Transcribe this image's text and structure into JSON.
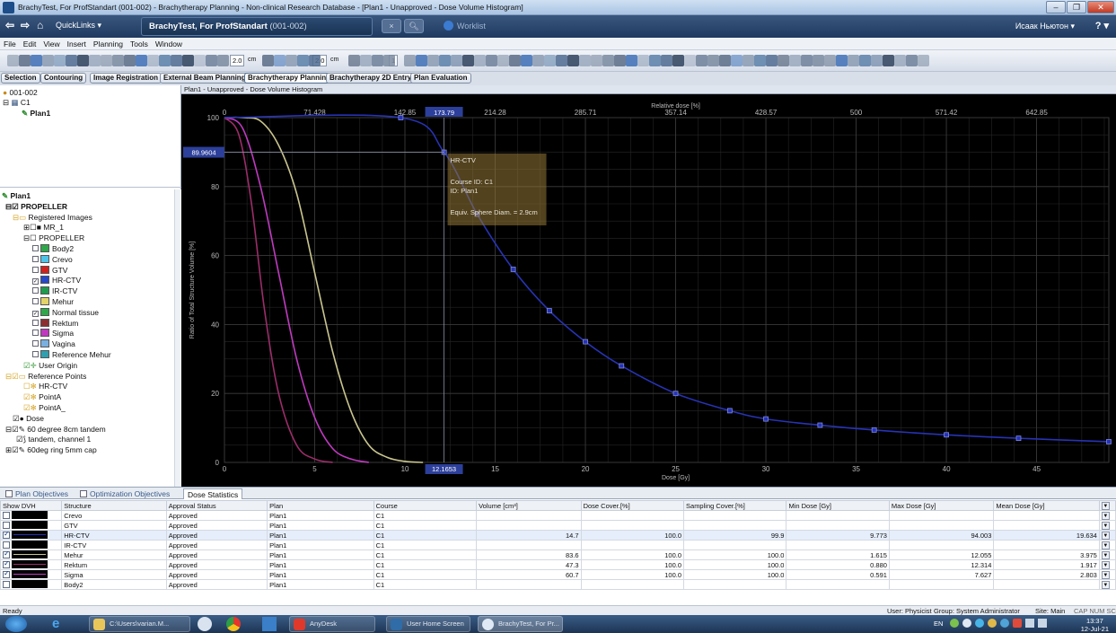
{
  "window": {
    "title": "BrachyTest, For ProfStandart (001-002) - Brachytherapy Planning - Non-clinical Research Database - [Plan1 - Unapproved - Dose Volume Histogram]"
  },
  "nav": {
    "quicklinks": "QuickLinks",
    "patient": "BrachyTest, For ProfStandart",
    "patient_id": "(001-002)",
    "worklist": "Worklist",
    "user": "Исаак Ньютон"
  },
  "menu": [
    "File",
    "Edit",
    "View",
    "Insert",
    "Planning",
    "Tools",
    "Window"
  ],
  "toolbar": {
    "field1": "2.0",
    "unit1": "cm",
    "field2": "2.0",
    "unit2": "cm",
    "field3": "1"
  },
  "workspaces": [
    "Selection",
    "Contouring",
    "Image Registration",
    "External Beam Planning",
    "Brachytherapy Planning",
    "Brachytherapy 2D Entry",
    "Plan Evaluation"
  ],
  "tree_top": {
    "patient": "001-002",
    "course": "C1",
    "plan": "Plan1"
  },
  "tree": {
    "plan": "Plan1",
    "image": "PROPELLER",
    "registered": "Registered Images",
    "mr": "MR_1",
    "structset": "PROPELLER",
    "structures": [
      {
        "name": "Body2",
        "color": "#2ea84a",
        "checked": false
      },
      {
        "name": "Crevo",
        "color": "#4fc3e8",
        "checked": false
      },
      {
        "name": "GTV",
        "color": "#d2211d",
        "checked": false
      },
      {
        "name": "HR-CTV",
        "color": "#2748c9",
        "checked": true
      },
      {
        "name": "IR-CTV",
        "color": "#1f9b4e",
        "checked": false
      },
      {
        "name": "Mehur",
        "color": "#e3d36a",
        "checked": false
      },
      {
        "name": "Normal tissue",
        "color": "#2ea84a",
        "checked": true
      },
      {
        "name": "Rektum",
        "color": "#8a3030",
        "checked": false
      },
      {
        "name": "Sigma",
        "color": "#c03ac0",
        "checked": false
      },
      {
        "name": "Vagina",
        "color": "#7ab0e0",
        "checked": false
      },
      {
        "name": "Reference Mehur",
        "color": "#2ea0b0",
        "checked": false
      }
    ],
    "origin": "User Origin",
    "refpoints": "Reference Points",
    "points": [
      "HR-CTV",
      "PointA",
      "PointA_"
    ],
    "dose": "Dose",
    "app1": "60 degree 8cm tandem",
    "app1child": "tandem, channel 1",
    "app2": "60deg ring 5mm cap"
  },
  "dvh": {
    "pane_title": "Plan1 - Unapproved - Dose Volume Histogram",
    "top_axis_label": "Relative dose [%]",
    "top_ticks": [
      "0",
      "71.428",
      "142.85",
      "214.28",
      "285.71",
      "357.14",
      "428.57",
      "500",
      "571.42",
      "642.85"
    ],
    "top_cursor": "173.79",
    "bottom_ticks": [
      "0",
      "5",
      "10",
      "15",
      "20",
      "25",
      "30",
      "35",
      "40",
      "45"
    ],
    "bottom_cursor": "12.1653",
    "x_label": "Dose [Gy]",
    "y_label": "Ratio of Total Structure Volume [%]",
    "y_ticks": [
      "100",
      "80",
      "60",
      "40",
      "20",
      "0"
    ],
    "y_cursor": "89.9604",
    "tooltip": {
      "name": "HR-CTV",
      "course": "Course ID: C1",
      "plan": "ID: Plan1",
      "esd": "Equiv. Sphere Diam. = 2.9cm"
    }
  },
  "chart_data": {
    "type": "line",
    "xlabel": "Dose [Gy]",
    "ylabel": "Ratio of Total Structure Volume [%]",
    "xlim": [
      0,
      49
    ],
    "ylim": [
      0,
      100
    ],
    "secondary_x": {
      "label": "Relative dose [%]",
      "ticks": [
        0,
        71.428,
        142.85,
        214.28,
        285.71,
        357.14,
        428.57,
        500,
        571.42,
        642.85
      ]
    },
    "series": [
      {
        "color": "#c9c58e",
        "x": [
          0,
          1,
          2,
          3,
          4,
          5,
          6,
          7,
          8,
          9,
          10,
          11
        ],
        "y": [
          100,
          100,
          99,
          92,
          78,
          55,
          32,
          15,
          5,
          1.5,
          0.3,
          0
        ]
      },
      {
        "color": "#c03ac0",
        "x": [
          0,
          1,
          2,
          3,
          4,
          5,
          6,
          7,
          8
        ],
        "y": [
          100,
          97,
          80,
          55,
          30,
          13,
          4,
          1,
          0
        ]
      },
      {
        "color": "#9c2d6a",
        "x": [
          0,
          0.8,
          1.5,
          2.2,
          3,
          4,
          5,
          6
        ],
        "y": [
          100,
          95,
          75,
          45,
          20,
          5,
          1,
          0
        ]
      },
      {
        "color": "#2733b5",
        "x": [
          0,
          9.77,
          12.17,
          14,
          16,
          18,
          20,
          22,
          25,
          28,
          30,
          33,
          36,
          40,
          44,
          49
        ],
        "y": [
          100,
          100,
          89.96,
          72,
          56,
          44,
          35,
          28,
          20,
          15,
          12.6,
          10.8,
          9.4,
          8,
          7,
          6
        ]
      }
    ],
    "cursor": {
      "x": 12.1653,
      "y": 89.9604
    }
  },
  "bottom": {
    "tabs": [
      "Plan Objectives",
      "Optimization Objectives",
      "Dose Statistics"
    ],
    "columns": [
      "Show DVH",
      "Structure",
      "Approval Status",
      "Plan",
      "Course",
      "Volume [cm³]",
      "Dose Cover.[%]",
      "Sampling Cover.[%]",
      "Min Dose [Gy]",
      "Max Dose [Gy]",
      "Mean Dose [Gy]"
    ],
    "rows": [
      {
        "show": false,
        "line": "",
        "structure": "Crevo",
        "status": "Approved",
        "plan": "Plan1",
        "course": "C1",
        "volume": "",
        "dose_cover": "",
        "samp_cover": "",
        "min": "",
        "max": "",
        "mean": ""
      },
      {
        "show": false,
        "line": "",
        "structure": "GTV",
        "status": "Approved",
        "plan": "Plan1",
        "course": "C1",
        "volume": "",
        "dose_cover": "",
        "samp_cover": "",
        "min": "",
        "max": "",
        "mean": ""
      },
      {
        "show": true,
        "line": "#2733b5",
        "structure": "HR-CTV",
        "status": "Approved",
        "plan": "Plan1",
        "course": "C1",
        "volume": "14.7",
        "dose_cover": "100.0",
        "samp_cover": "99.9",
        "min": "9.773",
        "max": "94.003",
        "mean": "19.634"
      },
      {
        "show": false,
        "line": "",
        "structure": "IR-CTV",
        "status": "Approved",
        "plan": "Plan1",
        "course": "C1",
        "volume": "",
        "dose_cover": "",
        "samp_cover": "",
        "min": "",
        "max": "",
        "mean": ""
      },
      {
        "show": true,
        "line": "#c9c58e",
        "structure": "Mehur",
        "status": "Approved",
        "plan": "Plan1",
        "course": "C1",
        "volume": "83.6",
        "dose_cover": "100.0",
        "samp_cover": "100.0",
        "min": "1.615",
        "max": "12.055",
        "mean": "3.975"
      },
      {
        "show": true,
        "line": "#9c2d6a",
        "structure": "Rektum",
        "status": "Approved",
        "plan": "Plan1",
        "course": "C1",
        "volume": "47.3",
        "dose_cover": "100.0",
        "samp_cover": "100.0",
        "min": "0.880",
        "max": "12.314",
        "mean": "1.917"
      },
      {
        "show": true,
        "line": "#c03ac0",
        "structure": "Sigma",
        "status": "Approved",
        "plan": "Plan1",
        "course": "C1",
        "volume": "60.7",
        "dose_cover": "100.0",
        "samp_cover": "100.0",
        "min": "0.591",
        "max": "7.627",
        "mean": "2.803"
      },
      {
        "show": false,
        "line": "",
        "structure": "Body2",
        "status": "Approved",
        "plan": "Plan1",
        "course": "C1",
        "volume": "",
        "dose_cover": "",
        "samp_cover": "",
        "min": "",
        "max": "",
        "mean": ""
      }
    ]
  },
  "status": {
    "left": "Ready",
    "user": "User: Physicist",
    "group": "Group: System Administrator",
    "site": "Site: Main",
    "keys": "CAP NUM SC"
  },
  "taskbar": {
    "items": [
      "C:\\Users\\varian.M...",
      "AnyDesk",
      "User Home Screen",
      "BrachyTest, For Pr..."
    ],
    "lang": "EN",
    "time": "13:37",
    "date": "12-Jul-21"
  }
}
